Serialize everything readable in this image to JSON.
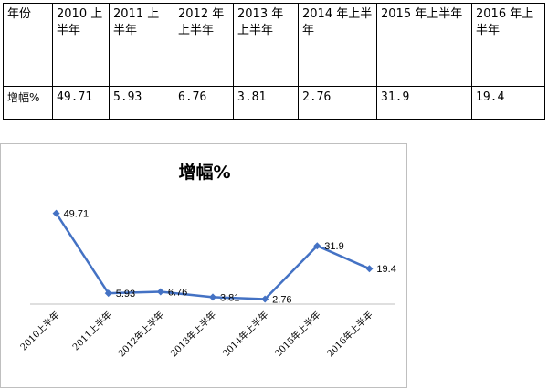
{
  "table": {
    "header_label": "年份",
    "row_label": "增幅%",
    "columns": [
      "2010 上半年",
      "2011 上半年",
      "2012 年上半年",
      "2013 年上半年",
      "2014 年上半年",
      "2015 年上半年",
      "2016 年上半年"
    ],
    "values": [
      "49.71",
      "5.93",
      "6.76",
      "3.81",
      "2.76",
      "31.9",
      "19.4"
    ]
  },
  "chart_data": {
    "type": "line",
    "title": "增幅%",
    "categories": [
      "2010上半年",
      "2011上半年",
      "2012年上半年",
      "2013年上半年",
      "2014年上半年",
      "2015年上半年",
      "2016年上半年"
    ],
    "series": [
      {
        "values": [
          49.71,
          5.93,
          6.76,
          3.81,
          2.76,
          31.9,
          19.4
        ],
        "color": "#4472c4"
      }
    ],
    "data_labels": [
      "49.71",
      "5.93",
      "6.76",
      "3.81",
      "2.76",
      "31.9",
      "19.4"
    ],
    "ylim": [
      0,
      60
    ],
    "grid": false,
    "legend": "none",
    "axis_color": "#bfbfbf"
  }
}
